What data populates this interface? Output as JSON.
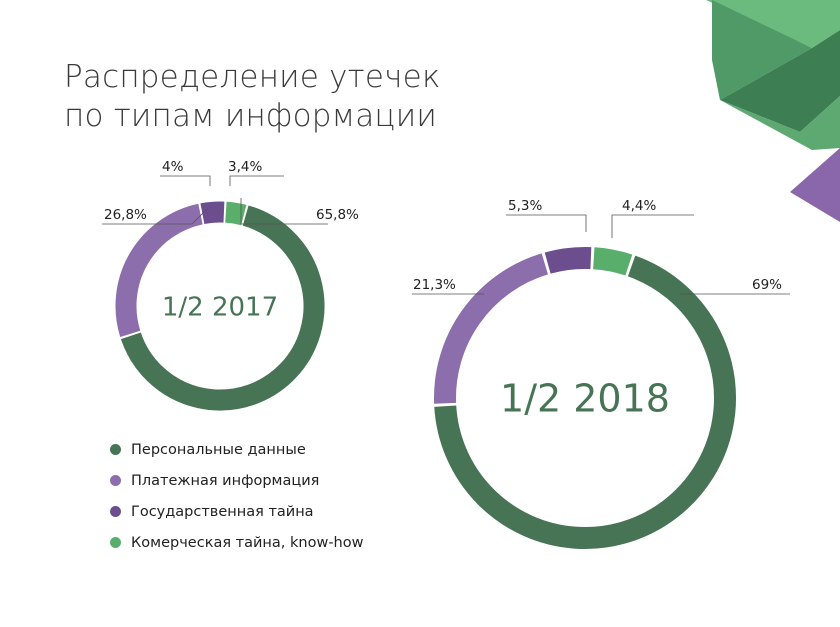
{
  "title": {
    "line1": "Распределение утечек",
    "line2": "по типам информации"
  },
  "colors": {
    "personal": "#487456",
    "payment": "#8d6eac",
    "state": "#6c4e8f",
    "commercial": "#5aae6b",
    "decor_light": "#6cbb7e",
    "decor_mid": "#4f9a66",
    "decor_dark": "#3d7f52",
    "decor_purple": "#8a67aa"
  },
  "legend": [
    {
      "label": "Персональные данные",
      "color": "#487456"
    },
    {
      "label": "Платежная информация",
      "color": "#8d6eac"
    },
    {
      "label": "Государственная тайна",
      "color": "#6c4e8f"
    },
    {
      "label": "Комерческая тайна, know-how",
      "color": "#5aae6b"
    }
  ],
  "chart_data": [
    {
      "type": "pie",
      "title": "1/2 2017",
      "categories": [
        "Персональные данные",
        "Платежная информация",
        "Государственная тайна",
        "Комерческая тайна, know-how"
      ],
      "values": [
        65.8,
        26.8,
        4.0,
        3.4
      ],
      "data_labels": [
        "65,8%",
        "26,8%",
        "4%",
        "3,4%"
      ],
      "colors": [
        "#487456",
        "#8d6eac",
        "#6c4e8f",
        "#5aae6b"
      ]
    },
    {
      "type": "pie",
      "title": "1/2 2018",
      "categories": [
        "Персональные данные",
        "Платежная информация",
        "Государственная тайна",
        "Комерческая тайна, know-how"
      ],
      "values": [
        69.0,
        21.3,
        5.3,
        4.4
      ],
      "data_labels": [
        "69%",
        "21,3%",
        "5,3%",
        "4,4%"
      ],
      "colors": [
        "#487456",
        "#8d6eac",
        "#6c4e8f",
        "#5aae6b"
      ]
    }
  ]
}
